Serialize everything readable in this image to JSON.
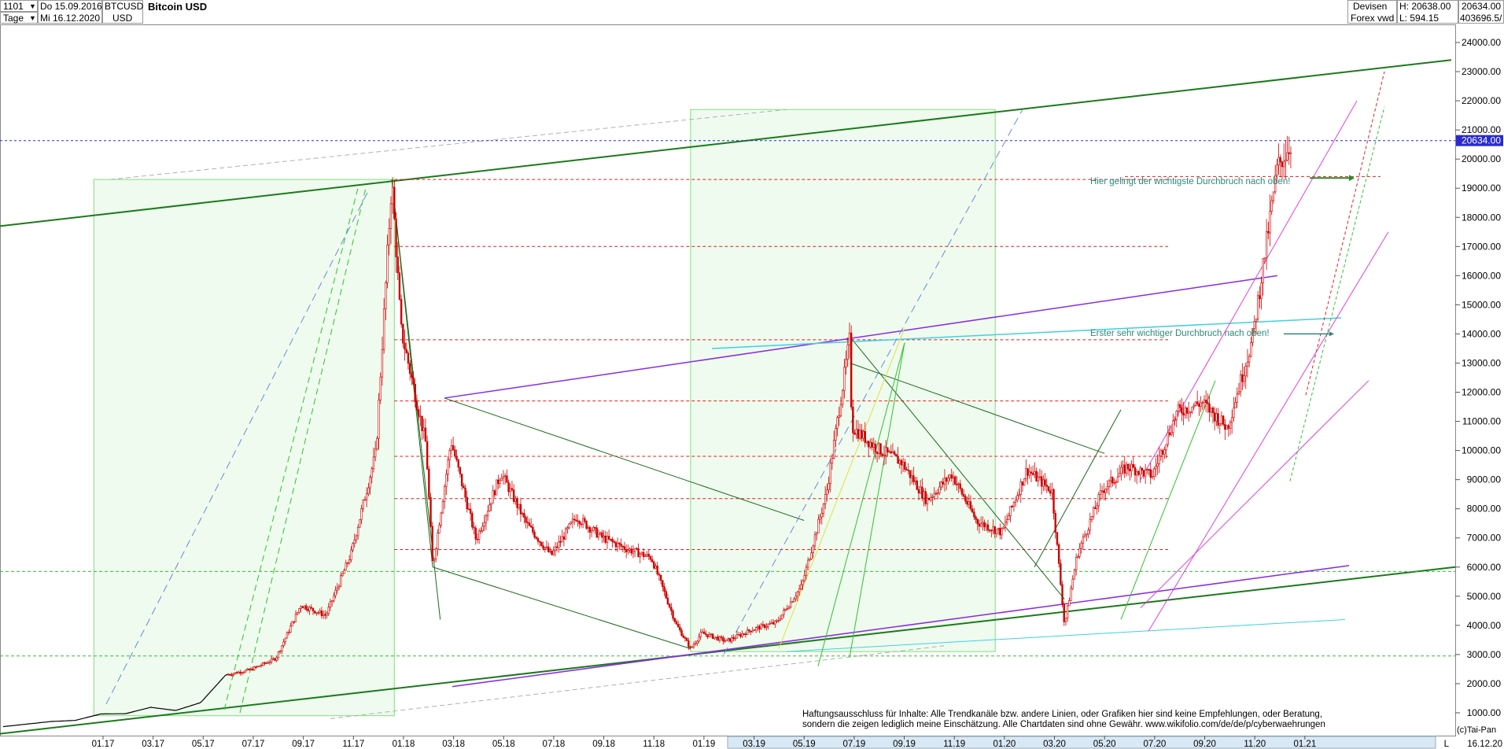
{
  "header": {
    "period_code": "1101",
    "period_unit": "Tage",
    "date_from": "Do 15.09.2016",
    "date_to": "Mi 16.12.2020",
    "symbol": "BTCUSD",
    "currency": "USD",
    "title": "Bitcoin USD",
    "market": "Devisen",
    "source": "Forex vwd",
    "high_label": "H: 20638.00",
    "low_label": "L: 594.15",
    "last_value": "20634.00",
    "volume_value": "403696.5/"
  },
  "chart_data": {
    "type": "candlestick",
    "title": "Bitcoin USD",
    "ylim": [
      0,
      25000
    ],
    "yticks": [
      1000,
      2000,
      3000,
      4000,
      5000,
      6000,
      7000,
      8000,
      9000,
      10000,
      11000,
      12000,
      13000,
      14000,
      15000,
      16000,
      17000,
      18000,
      19000,
      20000,
      21000,
      22000,
      23000,
      24000
    ],
    "ytick_labels": [
      "1000.00",
      "2000.00",
      "3000.00",
      "4000.00",
      "5000.00",
      "6000.00",
      "7000.00",
      "8000.00",
      "9000.00",
      "10000.00",
      "11000.00",
      "12000.00",
      "13000.00",
      "14000.00",
      "15000.00",
      "16000.00",
      "17000.00",
      "18000.00",
      "19000.00",
      "20000.00",
      "21000.00",
      "22000.00",
      "23000.00",
      "24000.00"
    ],
    "xticks": [
      "01.17",
      "03.17",
      "05.17",
      "07.17",
      "09.17",
      "11.17",
      "01.18",
      "03.18",
      "05.18",
      "07.18",
      "09.18",
      "11.18",
      "01.19",
      "03.19",
      "05.19",
      "07.19",
      "09.19",
      "11.19",
      "01.20",
      "03.20",
      "05.20",
      "07.20",
      "09.20",
      "11.20",
      "01.21"
    ],
    "xrange": [
      "2016-09",
      "2021-02"
    ],
    "x_end_label": "16.12.20",
    "last_price": 20634,
    "last_price_label": "20634.00",
    "grid": false,
    "series": [
      {
        "name": "Bitcoin USD",
        "color": "#cc0000",
        "monthly_close": [
          [
            "2016-09",
            608
          ],
          [
            "2016-10",
            700
          ],
          [
            "2016-11",
            740
          ],
          [
            "2016-12",
            960
          ],
          [
            "2017-01",
            970
          ],
          [
            "2017-02",
            1190
          ],
          [
            "2017-03",
            1080
          ],
          [
            "2017-04",
            1350
          ],
          [
            "2017-05",
            2300
          ],
          [
            "2017-06",
            2480
          ],
          [
            "2017-07",
            2870
          ],
          [
            "2017-08",
            4700
          ],
          [
            "2017-09",
            4340
          ],
          [
            "2017-10",
            6450
          ],
          [
            "2017-11",
            9950
          ],
          [
            "2017-12",
            14150
          ],
          [
            "2018-01",
            10200
          ],
          [
            "2018-02",
            10330
          ],
          [
            "2018-03",
            6930
          ],
          [
            "2018-04",
            9240
          ],
          [
            "2018-05",
            7500
          ],
          [
            "2018-06",
            6400
          ],
          [
            "2018-07",
            7730
          ],
          [
            "2018-08",
            7030
          ],
          [
            "2018-09",
            6630
          ],
          [
            "2018-10",
            6320
          ],
          [
            "2018-11",
            4020
          ],
          [
            "2018-12",
            3740
          ],
          [
            "2019-01",
            3460
          ],
          [
            "2019-02",
            3850
          ],
          [
            "2019-03",
            4100
          ],
          [
            "2019-04",
            5350
          ],
          [
            "2019-05",
            8570
          ],
          [
            "2019-06",
            10820
          ],
          [
            "2019-07",
            10080
          ],
          [
            "2019-08",
            9590
          ],
          [
            "2019-09",
            8290
          ],
          [
            "2019-10",
            9190
          ],
          [
            "2019-11",
            7560
          ],
          [
            "2019-12",
            7190
          ],
          [
            "2020-01",
            9350
          ],
          [
            "2020-02",
            8600
          ],
          [
            "2020-03",
            6410
          ],
          [
            "2020-04",
            8630
          ],
          [
            "2020-05",
            9450
          ],
          [
            "2020-06",
            9140
          ],
          [
            "2020-07",
            11330
          ],
          [
            "2020-08",
            11650
          ],
          [
            "2020-09",
            10780
          ],
          [
            "2020-10",
            13800
          ],
          [
            "2020-11",
            19700
          ],
          [
            "2020-12",
            20634
          ]
        ],
        "key_points": [
          [
            "2017-12-17",
            19300,
            "high"
          ],
          [
            "2018-02-06",
            6000,
            "low"
          ],
          [
            "2018-12-15",
            3200,
            "low"
          ],
          [
            "2019-06-26",
            13900,
            "high"
          ],
          [
            "2020-03-13",
            4000,
            "low"
          ],
          [
            "2020-12-16",
            20634,
            "last"
          ]
        ]
      }
    ],
    "annotations": [
      {
        "text": "Hier gelingt der wichtigste Durchbruch nach oben!",
        "date": "2020-08",
        "y": 19350,
        "color": "#2a8a7a"
      },
      {
        "text": "Erster sehr wichtiger Durchbruch nach oben!",
        "date": "2020-08",
        "y": 14000,
        "color": "#2a8a7a"
      }
    ],
    "disclaimer": [
      "Haftungsausschluss für Inhalte: Alle Trendkanäle bzw. andere Linien, oder Grafiken hier sind keine Empfehlungen, oder Beratung,",
      "sondern die zeigen lediglich meine  Einschätzung. Alle Chartdaten sind ohne Gewähr.  www.wikifolio.com/de/de/p/cyberwaehrungen"
    ],
    "copyright": "(c)Tai-Pan",
    "axis_corner": "L"
  },
  "colors": {
    "candle_up": "#cc0000",
    "candle_down": "#cc0000",
    "trend_main": "#1a7a1a",
    "trend_purple": "#8a2be2",
    "trend_cyan": "#40d0e0",
    "trend_magenta": "#e040e0",
    "fib_red": "#e02020",
    "box_green": "#7de07d",
    "price_line_blue": "#2a2ad0",
    "price_tag_bg": "#2a2ad0"
  }
}
